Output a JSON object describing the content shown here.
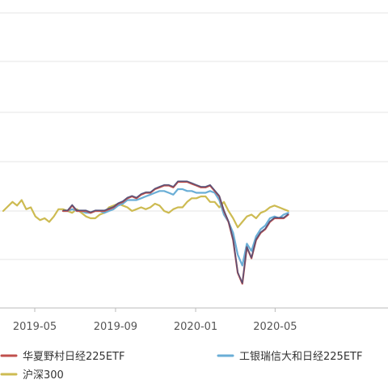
{
  "chart_data": {
    "type": "line",
    "x": [
      "2019-03-14",
      "2019-03-28",
      "2019-04-04",
      "2019-04-11",
      "2019-04-18",
      "2019-04-25",
      "2019-05-02",
      "2019-05-09",
      "2019-05-16",
      "2019-05-23",
      "2019-05-30",
      "2019-06-06",
      "2019-06-13",
      "2019-06-20",
      "2019-06-27",
      "2019-07-04",
      "2019-07-11",
      "2019-07-18",
      "2019-07-25",
      "2019-08-01",
      "2019-08-08",
      "2019-08-15",
      "2019-08-22",
      "2019-08-29",
      "2019-09-05",
      "2019-09-12",
      "2019-09-19",
      "2019-09-26",
      "2019-10-03",
      "2019-10-10",
      "2019-10-17",
      "2019-10-24",
      "2019-10-31",
      "2019-11-07",
      "2019-11-14",
      "2019-11-21",
      "2019-11-28",
      "2019-12-05",
      "2019-12-12",
      "2019-12-19",
      "2019-12-26",
      "2020-01-02",
      "2020-01-09",
      "2020-01-16",
      "2020-01-23",
      "2020-01-30",
      "2020-02-06",
      "2020-02-13",
      "2020-02-20",
      "2020-02-27",
      "2020-03-05",
      "2020-03-12",
      "2020-03-19",
      "2020-03-26",
      "2020-04-02",
      "2020-04-09",
      "2020-04-16",
      "2020-04-23",
      "2020-04-30",
      "2020-05-07",
      "2020-05-14",
      "2020-05-21"
    ],
    "series": [
      {
        "name": "华夏野村日经225ETF",
        "color": "#c0504d",
        "values": [
          null,
          null,
          null,
          null,
          null,
          null,
          null,
          null,
          null,
          null,
          null,
          null,
          0,
          0,
          1.5,
          0,
          0,
          0,
          -0.5,
          0,
          0,
          0,
          0.5,
          1,
          2,
          2.5,
          3.5,
          4,
          3.5,
          4.5,
          5,
          5,
          6,
          6.5,
          7,
          7,
          6.5,
          8,
          8,
          8,
          7.5,
          7,
          6.5,
          6.5,
          7,
          5.5,
          4,
          0,
          -3,
          -8,
          -17,
          -20,
          -10,
          -13,
          -8,
          -6,
          -5,
          -3,
          -2,
          -2,
          -2,
          -1
        ]
      },
      {
        "name": "工银瑞信大和日经225ETF",
        "color": "#6aaed6",
        "values": [
          null,
          null,
          null,
          null,
          null,
          null,
          null,
          null,
          null,
          null,
          null,
          null,
          0,
          0,
          0.5,
          0,
          0,
          -0.5,
          -0.5,
          0,
          0,
          -0.5,
          0,
          0.5,
          1.5,
          2,
          3,
          3,
          3,
          3.5,
          4,
          4.5,
          5,
          5.5,
          5.5,
          5,
          4.5,
          6,
          6,
          5.5,
          5.5,
          5,
          5,
          5,
          5.5,
          5,
          3,
          -1,
          -3,
          -6,
          -12,
          -15,
          -9,
          -11,
          -7,
          -5,
          -4,
          -2,
          -1.5,
          -2,
          -1,
          -0.5
        ]
      },
      {
        "name": "沪深300",
        "color": "#cdbb52",
        "values": [
          0,
          2.5,
          1.5,
          3,
          0.5,
          1,
          -1.5,
          -2.5,
          -2,
          -3,
          -1.5,
          0.5,
          0.5,
          0,
          -0.5,
          0.5,
          -0.5,
          -1.5,
          -2,
          -2,
          -1,
          -0.5,
          1,
          1.5,
          2,
          1.5,
          1,
          0,
          0.5,
          1,
          0.5,
          1,
          2,
          1.5,
          0,
          -0.5,
          0.5,
          1,
          1,
          2.5,
          3.5,
          3.5,
          4,
          4,
          2.5,
          2.5,
          1,
          2.5,
          0,
          -2,
          -4.5,
          -3,
          -1.5,
          -1,
          -2,
          -0.5,
          0,
          1,
          1.5,
          1,
          0.5,
          0
        ]
      }
    ],
    "xticks": [
      "2019-05",
      "2019-09",
      "2020-01",
      "2020-05"
    ],
    "grid": true,
    "legend": "bottom"
  }
}
